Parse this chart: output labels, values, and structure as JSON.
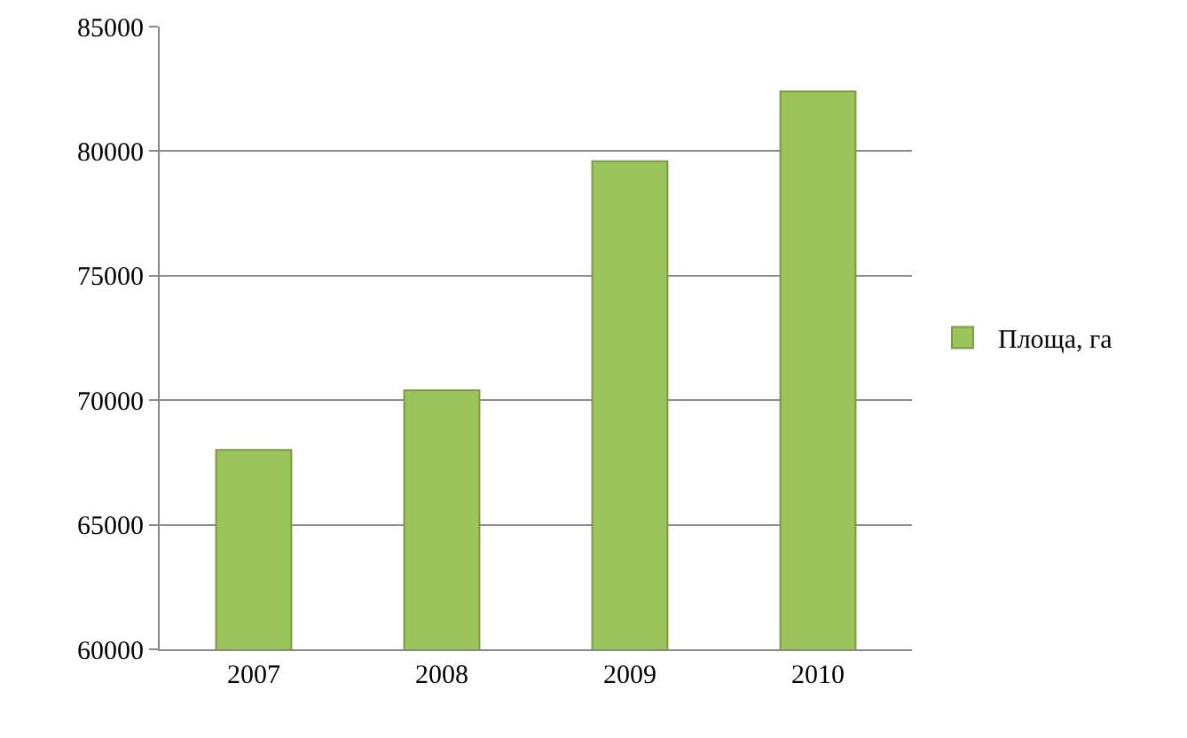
{
  "chart_data": {
    "type": "bar",
    "categories": [
      "2007",
      "2008",
      "2009",
      "2010"
    ],
    "series": [
      {
        "name": "Площа, га",
        "color": "#9bc45a",
        "values": [
          68000,
          70400,
          79600,
          82400
        ]
      }
    ],
    "ylim": [
      60000,
      85000
    ],
    "yticks": [
      60000,
      65000,
      70000,
      75000,
      80000,
      85000
    ],
    "grid": "y",
    "legend": "right"
  }
}
